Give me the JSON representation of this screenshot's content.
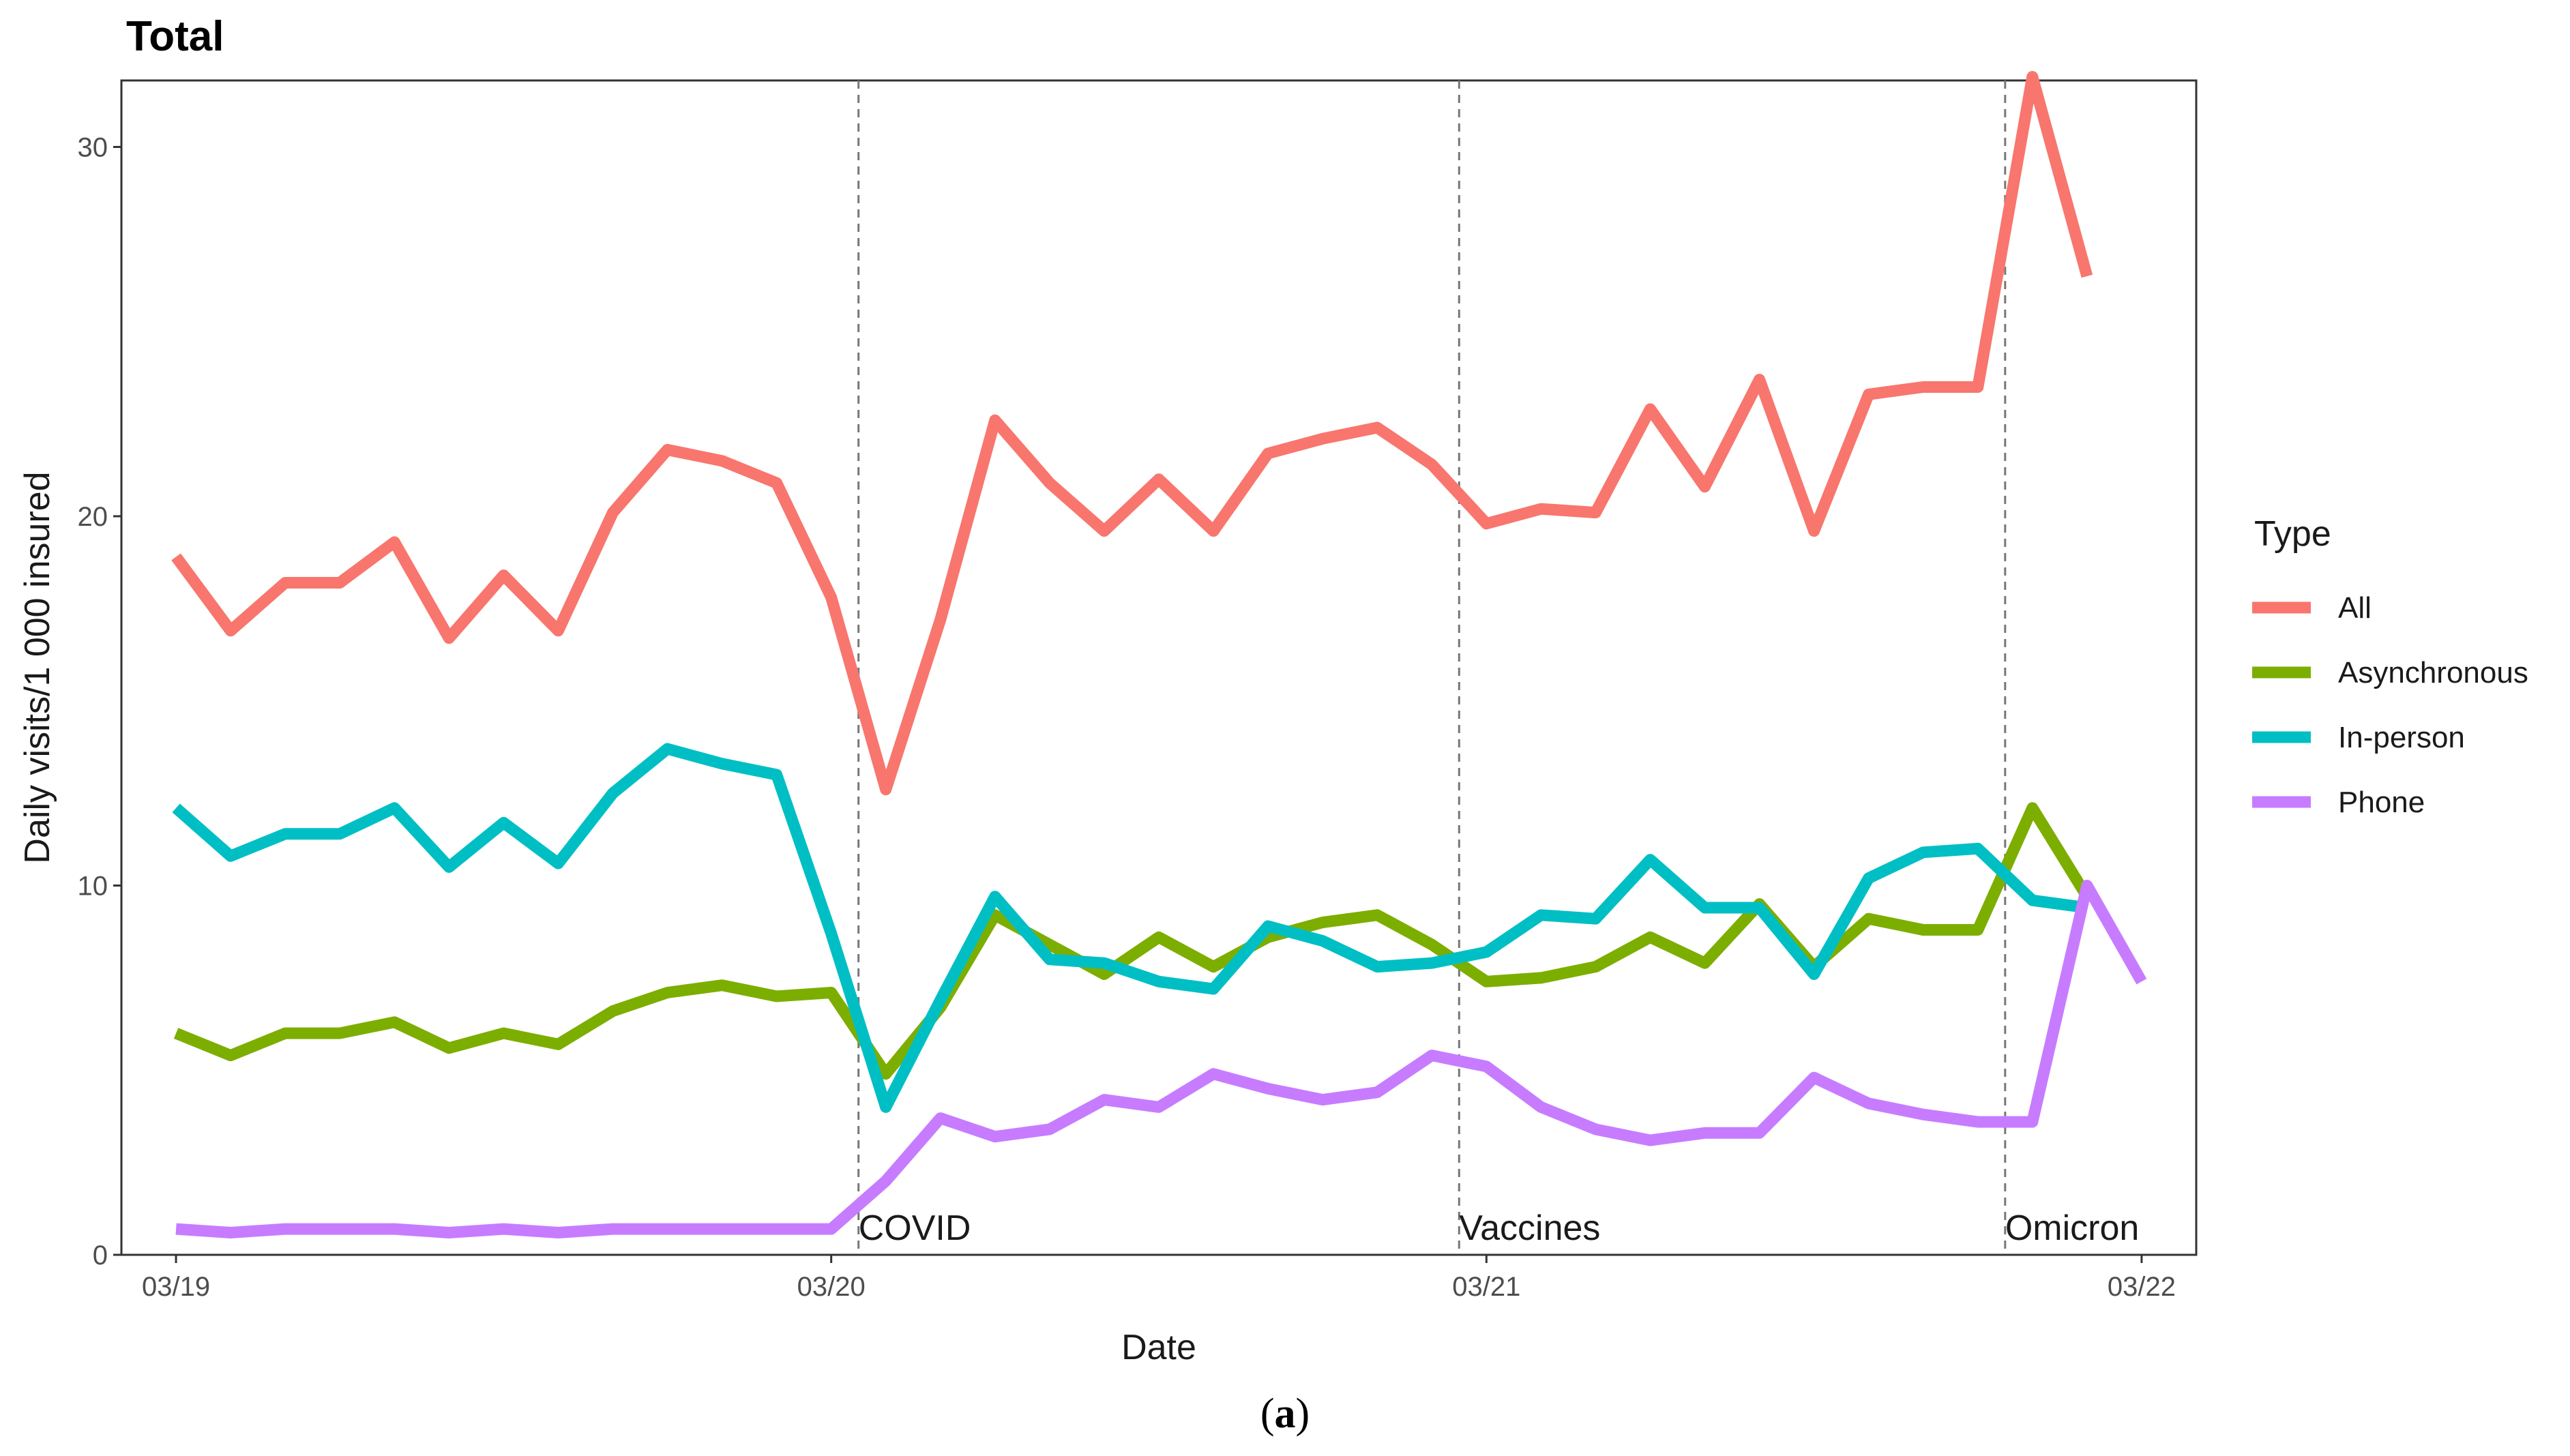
{
  "chart_data": {
    "type": "line",
    "title": "Total",
    "xlabel": "Date",
    "ylabel": "Daily visits/1 000 insured",
    "x_ticks": [
      "03/19",
      "03/20",
      "03/21",
      "03/22"
    ],
    "y_ticks": [
      "0",
      "10",
      "20",
      "30"
    ],
    "ylim": [
      0,
      31.8
    ],
    "xlim": [
      "2019-02",
      "2022-04"
    ],
    "grid": false,
    "legend_title": "Type",
    "legend_position": "right",
    "x": [
      "2019-03",
      "2019-04",
      "2019-05",
      "2019-06",
      "2019-07",
      "2019-08",
      "2019-09",
      "2019-10",
      "2019-11",
      "2019-12",
      "2020-01",
      "2020-02",
      "2020-03",
      "2020-04",
      "2020-05",
      "2020-06",
      "2020-07",
      "2020-08",
      "2020-09",
      "2020-10",
      "2020-11",
      "2020-12",
      "2021-01",
      "2021-02",
      "2021-03",
      "2021-04",
      "2021-05",
      "2021-06",
      "2021-07",
      "2021-08",
      "2021-09",
      "2021-10",
      "2021-11",
      "2021-12",
      "2022-01",
      "2022-02",
      "2022-03"
    ],
    "series": [
      {
        "name": "All",
        "color": "#F8766D",
        "values": [
          18.9,
          16.9,
          18.2,
          18.2,
          19.3,
          16.7,
          18.4,
          16.9,
          20.1,
          21.8,
          21.5,
          20.9,
          17.8,
          12.6,
          17.2,
          22.6,
          20.9,
          19.6,
          21.0,
          19.6,
          21.7,
          22.1,
          22.4,
          21.4,
          19.8,
          20.2,
          20.1,
          22.9,
          20.8,
          23.7,
          19.6,
          23.3,
          23.5,
          23.5,
          31.9,
          26.5,
          null
        ]
      },
      {
        "name": "Asynchronous",
        "color": "#7CAE00",
        "values": [
          6.0,
          5.4,
          6.0,
          6.0,
          6.3,
          5.6,
          6.0,
          5.7,
          6.6,
          7.1,
          7.3,
          7.0,
          7.1,
          4.9,
          6.7,
          9.2,
          8.4,
          7.6,
          8.6,
          7.8,
          8.6,
          9.0,
          9.2,
          8.4,
          7.4,
          7.5,
          7.8,
          8.6,
          7.9,
          9.5,
          7.8,
          9.1,
          8.8,
          8.8,
          12.1,
          9.7,
          null
        ]
      },
      {
        "name": "In-person",
        "color": "#00BFC4",
        "values": [
          12.1,
          10.8,
          11.4,
          11.4,
          12.1,
          10.5,
          11.7,
          10.6,
          12.5,
          13.7,
          13.3,
          13.0,
          8.7,
          4.0,
          6.9,
          9.7,
          8.0,
          7.9,
          7.4,
          7.2,
          8.9,
          8.5,
          7.8,
          7.9,
          8.2,
          9.2,
          9.1,
          10.7,
          9.4,
          9.4,
          7.6,
          10.2,
          10.9,
          11.0,
          9.6,
          9.4,
          null
        ]
      },
      {
        "name": "Phone",
        "color": "#C77CFF",
        "values": [
          0.7,
          0.6,
          0.7,
          0.7,
          0.7,
          0.6,
          0.7,
          0.6,
          0.7,
          0.7,
          0.7,
          0.7,
          0.7,
          2.0,
          3.7,
          3.2,
          3.4,
          4.2,
          4.0,
          4.9,
          4.5,
          4.2,
          4.4,
          5.4,
          5.1,
          4.0,
          3.4,
          3.1,
          3.3,
          3.3,
          4.8,
          4.1,
          3.8,
          3.6,
          3.6,
          10.0,
          7.4
        ]
      }
    ],
    "annotations": [
      {
        "label": "COVID",
        "x": "2020-03"
      },
      {
        "label": "Vaccines",
        "x": "2021-02"
      },
      {
        "label": "Omicron",
        "x": "2021-12"
      }
    ]
  },
  "caption": {
    "open": "(",
    "letter": "a",
    "close": ")"
  }
}
